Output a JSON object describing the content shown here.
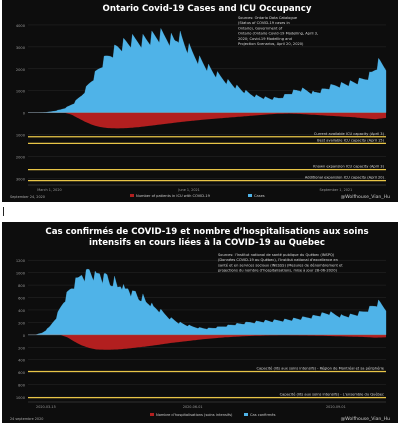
{
  "chart_data": [
    {
      "type": "area",
      "title": "Ontario Covid-19 Cases and ICU Occupancy",
      "source": [
        "Sources: Ontario Data Catalogue",
        "(Status of COVID-19 cases in",
        "Ontario), Government of",
        "Ontario (Ontario Covid-19 Modelling, April 3,",
        "2020; Covid-19 Modelling and",
        "Projection Scenarios, April 20, 2020)"
      ],
      "y_ticks": [
        {
          "v": 4000,
          "label": "4000"
        },
        {
          "v": 3000,
          "label": "3000"
        },
        {
          "v": 2000,
          "label": "2000"
        },
        {
          "v": 1000,
          "label": "1000"
        },
        {
          "v": 0,
          "label": "0"
        },
        {
          "v": -1000,
          "label": "1000"
        },
        {
          "v": -2000,
          "label": "2000"
        },
        {
          "v": -3000,
          "label": "3000"
        }
      ],
      "ylim": [
        -3300,
        4500
      ],
      "x_ticks": [
        {
          "x": 0.06,
          "label": "March 1, 2020"
        },
        {
          "x": 0.45,
          "label": "June 1, 2021"
        },
        {
          "x": 0.86,
          "label": "September 1, 2021"
        }
      ],
      "cases_shape": [
        [
          0.0,
          0
        ],
        [
          0.03,
          0
        ],
        [
          0.05,
          15
        ],
        [
          0.07,
          60
        ],
        [
          0.09,
          130
        ],
        [
          0.11,
          250
        ],
        [
          0.13,
          450
        ],
        [
          0.15,
          800
        ],
        [
          0.17,
          1300
        ],
        [
          0.19,
          1800
        ],
        [
          0.21,
          2300
        ],
        [
          0.23,
          2700
        ],
        [
          0.25,
          3000
        ],
        [
          0.27,
          3150
        ],
        [
          0.29,
          3250
        ],
        [
          0.31,
          3300
        ],
        [
          0.33,
          3350
        ],
        [
          0.35,
          3450
        ],
        [
          0.37,
          3500
        ],
        [
          0.39,
          3450
        ],
        [
          0.41,
          3300
        ],
        [
          0.42,
          3550
        ],
        [
          0.43,
          3300
        ],
        [
          0.44,
          3050
        ],
        [
          0.46,
          2700
        ],
        [
          0.48,
          2400
        ],
        [
          0.5,
          2100
        ],
        [
          0.52,
          1800
        ],
        [
          0.54,
          1600
        ],
        [
          0.56,
          1400
        ],
        [
          0.58,
          1200
        ],
        [
          0.6,
          1000
        ],
        [
          0.62,
          850
        ],
        [
          0.64,
          750
        ],
        [
          0.66,
          680
        ],
        [
          0.68,
          630
        ],
        [
          0.7,
          660
        ],
        [
          0.72,
          800
        ],
        [
          0.74,
          950
        ],
        [
          0.76,
          1050
        ],
        [
          0.78,
          1000
        ],
        [
          0.8,
          900
        ],
        [
          0.82,
          1000
        ],
        [
          0.84,
          1150
        ],
        [
          0.86,
          1250
        ],
        [
          0.88,
          1300
        ],
        [
          0.9,
          1350
        ],
        [
          0.92,
          1400
        ],
        [
          0.94,
          1550
        ],
        [
          0.96,
          1800
        ],
        [
          0.98,
          2300
        ],
        [
          1.0,
          2100
        ]
      ],
      "icu_shape": [
        [
          0.0,
          0
        ],
        [
          0.1,
          0
        ],
        [
          0.12,
          -80
        ],
        [
          0.14,
          -250
        ],
        [
          0.16,
          -420
        ],
        [
          0.18,
          -560
        ],
        [
          0.2,
          -650
        ],
        [
          0.22,
          -700
        ],
        [
          0.25,
          -720
        ],
        [
          0.28,
          -700
        ],
        [
          0.31,
          -660
        ],
        [
          0.34,
          -600
        ],
        [
          0.37,
          -540
        ],
        [
          0.4,
          -480
        ],
        [
          0.43,
          -420
        ],
        [
          0.46,
          -370
        ],
        [
          0.49,
          -320
        ],
        [
          0.52,
          -280
        ],
        [
          0.55,
          -240
        ],
        [
          0.58,
          -200
        ],
        [
          0.61,
          -160
        ],
        [
          0.64,
          -120
        ],
        [
          0.67,
          -80
        ],
        [
          0.7,
          -50
        ],
        [
          0.73,
          -40
        ],
        [
          0.76,
          -60
        ],
        [
          0.79,
          -90
        ],
        [
          0.82,
          -120
        ],
        [
          0.85,
          -150
        ],
        [
          0.88,
          -180
        ],
        [
          0.91,
          -210
        ],
        [
          0.94,
          -260
        ],
        [
          0.97,
          -300
        ],
        [
          1.0,
          -240
        ]
      ],
      "capacity_lines": [
        {
          "value": -1100,
          "label": "Current available ICU capacity (April 3)"
        },
        {
          "value": -1400,
          "label": "Best available ICU capacity (April 15)"
        },
        {
          "value": -2600,
          "label": "Known expansion ICU capacity (April 3)"
        },
        {
          "value": -3100,
          "label": "Additional expansion ICU capacity (April 20)"
        }
      ],
      "legend": [
        "Number of patients in ICU with COVID-19",
        "Cases"
      ],
      "footer_left": "September 24, 2020",
      "footer_right": "@Wolfhouse_Vian_Hu",
      "colors": {
        "cases": "#4fb3e8",
        "icu": "#b21f1f",
        "capacity": "#e8c547",
        "axis": "#9a9a9a"
      }
    },
    {
      "type": "area",
      "title": "Cas confirmés de COVID-19 et nombre d’hospitalisations aux soins intensifs en cours liées à la COVID-19 au Québec",
      "source": [
        "Sources: l’Institut national de santé publique du Québec (INSPQ)",
        "(Données COVID-19 au Québec), l’Institut national d’excellence en",
        "santé et en services sociaux (INESSS) (Mesures de dénombrement et",
        "projections du nombre d’hospitalisations, mise à jour 28-06-2020)"
      ],
      "y_ticks": [
        {
          "v": 1200,
          "label": "1200"
        },
        {
          "v": 1000,
          "label": "1000"
        },
        {
          "v": 800,
          "label": "800"
        },
        {
          "v": 600,
          "label": "600"
        },
        {
          "v": 400,
          "label": "400"
        },
        {
          "v": 200,
          "label": "200"
        },
        {
          "v": 0,
          "label": "0"
        },
        {
          "v": -200,
          "label": "200"
        },
        {
          "v": -400,
          "label": "400"
        },
        {
          "v": -600,
          "label": "600"
        },
        {
          "v": -800,
          "label": "800"
        },
        {
          "v": -1000,
          "label": "1000"
        }
      ],
      "ylim": [
        -1080,
        1300
      ],
      "x_ticks": [
        {
          "x": 0.05,
          "label": "2020-03-15"
        },
        {
          "x": 0.46,
          "label": "2020-06-01"
        },
        {
          "x": 0.86,
          "label": "2020-09-01"
        }
      ],
      "cases_shape": [
        [
          0.0,
          0
        ],
        [
          0.02,
          0
        ],
        [
          0.04,
          30
        ],
        [
          0.06,
          120
        ],
        [
          0.08,
          300
        ],
        [
          0.1,
          550
        ],
        [
          0.12,
          750
        ],
        [
          0.14,
          880
        ],
        [
          0.15,
          1000
        ],
        [
          0.16,
          950
        ],
        [
          0.17,
          1050
        ],
        [
          0.18,
          980
        ],
        [
          0.19,
          930
        ],
        [
          0.2,
          1000
        ],
        [
          0.21,
          880
        ],
        [
          0.22,
          950
        ],
        [
          0.23,
          820
        ],
        [
          0.24,
          900
        ],
        [
          0.25,
          760
        ],
        [
          0.26,
          840
        ],
        [
          0.27,
          700
        ],
        [
          0.28,
          760
        ],
        [
          0.29,
          640
        ],
        [
          0.3,
          680
        ],
        [
          0.31,
          580
        ],
        [
          0.32,
          620
        ],
        [
          0.33,
          520
        ],
        [
          0.34,
          520
        ],
        [
          0.35,
          440
        ],
        [
          0.36,
          420
        ],
        [
          0.38,
          340
        ],
        [
          0.4,
          260
        ],
        [
          0.42,
          200
        ],
        [
          0.44,
          160
        ],
        [
          0.46,
          130
        ],
        [
          0.48,
          110
        ],
        [
          0.5,
          100
        ],
        [
          0.52,
          110
        ],
        [
          0.54,
          130
        ],
        [
          0.56,
          150
        ],
        [
          0.58,
          170
        ],
        [
          0.6,
          180
        ],
        [
          0.62,
          200
        ],
        [
          0.64,
          210
        ],
        [
          0.66,
          220
        ],
        [
          0.68,
          220
        ],
        [
          0.7,
          230
        ],
        [
          0.72,
          240
        ],
        [
          0.74,
          250
        ],
        [
          0.76,
          260
        ],
        [
          0.78,
          280
        ],
        [
          0.8,
          300
        ],
        [
          0.82,
          330
        ],
        [
          0.84,
          350
        ],
        [
          0.86,
          320
        ],
        [
          0.88,
          300
        ],
        [
          0.9,
          310
        ],
        [
          0.92,
          330
        ],
        [
          0.94,
          380
        ],
        [
          0.96,
          450
        ],
        [
          0.98,
          520
        ],
        [
          1.0,
          420
        ]
      ],
      "icu_shape": [
        [
          0.0,
          0
        ],
        [
          0.09,
          0
        ],
        [
          0.11,
          -40
        ],
        [
          0.13,
          -110
        ],
        [
          0.15,
          -170
        ],
        [
          0.17,
          -210
        ],
        [
          0.19,
          -235
        ],
        [
          0.22,
          -240
        ],
        [
          0.25,
          -235
        ],
        [
          0.28,
          -220
        ],
        [
          0.31,
          -200
        ],
        [
          0.34,
          -180
        ],
        [
          0.37,
          -155
        ],
        [
          0.4,
          -130
        ],
        [
          0.43,
          -110
        ],
        [
          0.46,
          -90
        ],
        [
          0.49,
          -70
        ],
        [
          0.52,
          -55
        ],
        [
          0.55,
          -40
        ],
        [
          0.58,
          -30
        ],
        [
          0.61,
          -20
        ],
        [
          0.64,
          -15
        ],
        [
          0.67,
          -10
        ],
        [
          0.7,
          -8
        ],
        [
          0.73,
          -8
        ],
        [
          0.76,
          -10
        ],
        [
          0.79,
          -12
        ],
        [
          0.82,
          -15
        ],
        [
          0.85,
          -20
        ],
        [
          0.88,
          -25
        ],
        [
          0.91,
          -30
        ],
        [
          0.94,
          -35
        ],
        [
          0.97,
          -45
        ],
        [
          1.0,
          -40
        ]
      ],
      "capacity_lines": [
        {
          "value": -590,
          "label": "Capacité (lits aux soins intensifs) - Région de Montréal et sa périphérie"
        },
        {
          "value": -1010,
          "label": "Capacité (lits aux soins intensifs) - L’ensemble du Québec"
        }
      ],
      "legend": [
        "Nombre d’hospitalisations (soins intensifs)",
        "Cas confirmés"
      ],
      "footer_left": "24 septembre 2020",
      "footer_right": "@Wolfhouse_Vian_Hu",
      "colors": {
        "cases": "#4fb3e8",
        "icu": "#b21f1f",
        "capacity": "#e8c547",
        "axis": "#9a9a9a"
      }
    }
  ]
}
